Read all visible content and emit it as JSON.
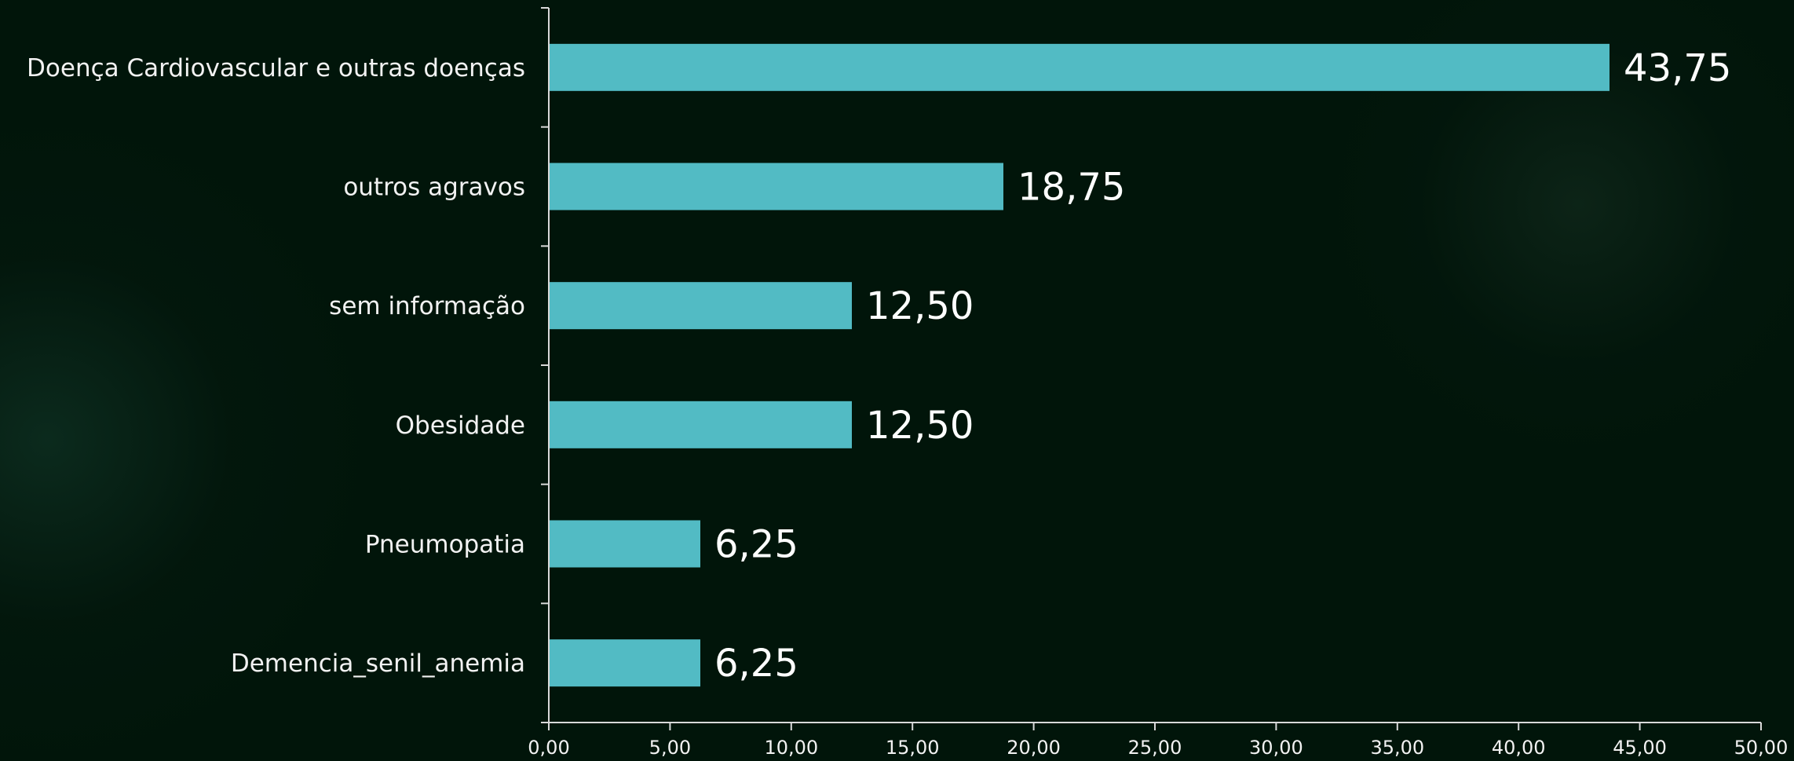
{
  "chart_data": {
    "type": "bar",
    "orientation": "horizontal",
    "categories": [
      "Doença Cardiovascular e outras doenças",
      "outros agravos",
      "sem informação",
      "Obesidade",
      "Pneumopatia",
      "Demencia_senil_anemia"
    ],
    "values": [
      43.75,
      18.75,
      12.5,
      12.5,
      6.25,
      6.25
    ],
    "value_labels": [
      "43,75",
      "18,75",
      "12,50",
      "12,50",
      "6,25",
      "6,25"
    ],
    "xlim": [
      0,
      50
    ],
    "x_ticks": [
      0,
      5,
      10,
      15,
      20,
      25,
      30,
      35,
      40,
      45,
      50
    ],
    "x_tick_labels": [
      "0,00",
      "5,00",
      "10,00",
      "15,00",
      "20,00",
      "25,00",
      "30,00",
      "35,00",
      "40,00",
      "45,00",
      "50,00"
    ],
    "title": "",
    "xlabel": "",
    "ylabel": "",
    "grid": false,
    "legend": "none",
    "bar_color": "#52bbc4",
    "axis_color": "#d9d9d9",
    "background_color": "#01150a"
  }
}
